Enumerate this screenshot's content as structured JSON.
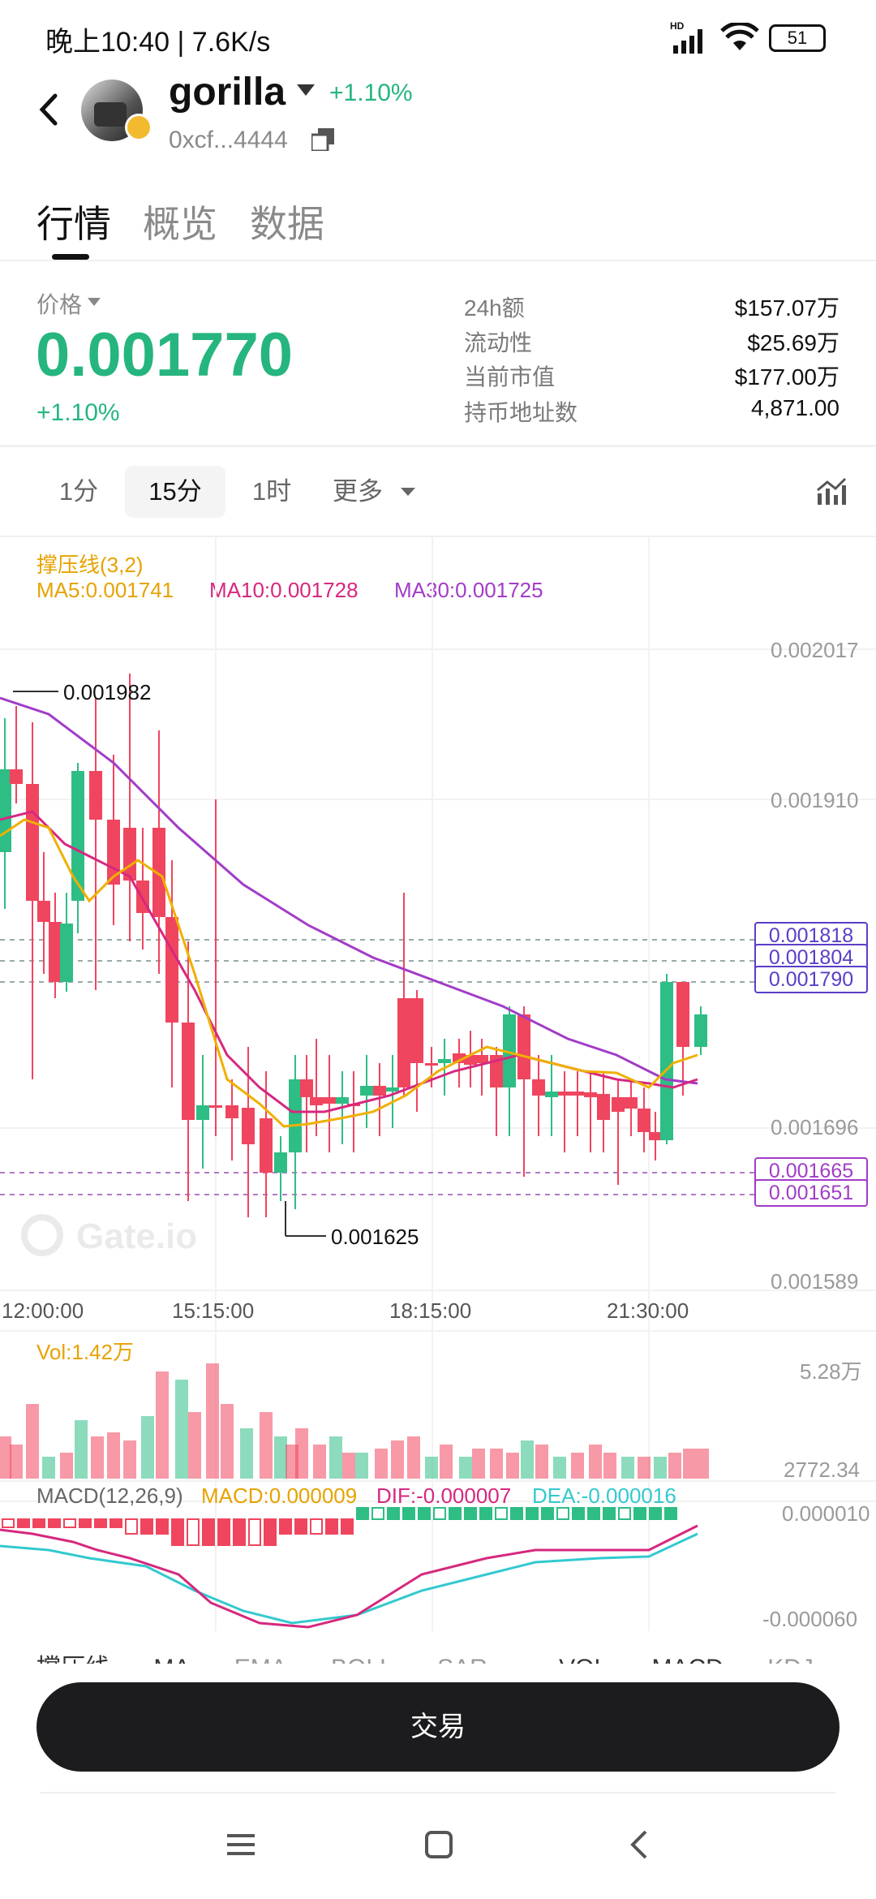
{
  "status_bar": {
    "time": "晚上10:40 | 7.6K/s",
    "network": "HD",
    "battery": "51"
  },
  "header": {
    "token_name": "gorilla",
    "change": "+1.10%",
    "address": "0xcf...4444"
  },
  "tabs": [
    "行情",
    "概览",
    "数据"
  ],
  "price_section": {
    "label": "价格",
    "price": "0.001770",
    "change": "+1.10%",
    "stats": [
      {
        "label": "24h额",
        "value": "$157.07万"
      },
      {
        "label": "流动性",
        "value": "$25.69万"
      },
      {
        "label": "当前市值",
        "value": "$177.00万"
      },
      {
        "label": "持币地址数",
        "value": "4,871.00"
      }
    ]
  },
  "timeframes": [
    "1分",
    "15分",
    "1时",
    "更多"
  ],
  "active_timeframe": "15分",
  "chart": {
    "indicator_title": "撑压线(3,2)",
    "ma5": "MA5:0.001741",
    "ma10": "MA10:0.001728",
    "ma30": "MA30:0.001725",
    "y_ticks": [
      "0.002017",
      "0.001910",
      "0.001696",
      "0.001589"
    ],
    "x_ticks": [
      "12:00:00",
      "15:15:00",
      "18:15:00",
      "21:30:00"
    ],
    "high_marker": "0.001982",
    "low_marker": "0.001625",
    "resistance_lines": [
      "0.001818",
      "0.001804",
      "0.001790"
    ],
    "support_lines": [
      "0.001665",
      "0.001651"
    ],
    "watermark": "Gate.io",
    "colors": {
      "up": "#2ebd85",
      "down": "#f0455f",
      "ma5": "#f0b000",
      "ma10": "#d6287f",
      "ma30": "#a23cc8",
      "dif": "#d6287f",
      "dea": "#33c9cf"
    }
  },
  "volume": {
    "label": "Vol:1.42万",
    "max_tick": "5.28万",
    "min_tick": "2772.34"
  },
  "macd": {
    "title": "MACD(12,26,9)",
    "macd": "MACD:0.000009",
    "dif": "DIF:-0.000007",
    "dea": "DEA:-0.000016",
    "max_tick": "0.000010",
    "min_tick": "-0.000060"
  },
  "indicator_tabs": [
    "撑压线",
    "MA",
    "EMA",
    "BOLL",
    "SAR",
    "VOL",
    "MACD",
    "KDJ"
  ],
  "trade_button": "交易"
}
